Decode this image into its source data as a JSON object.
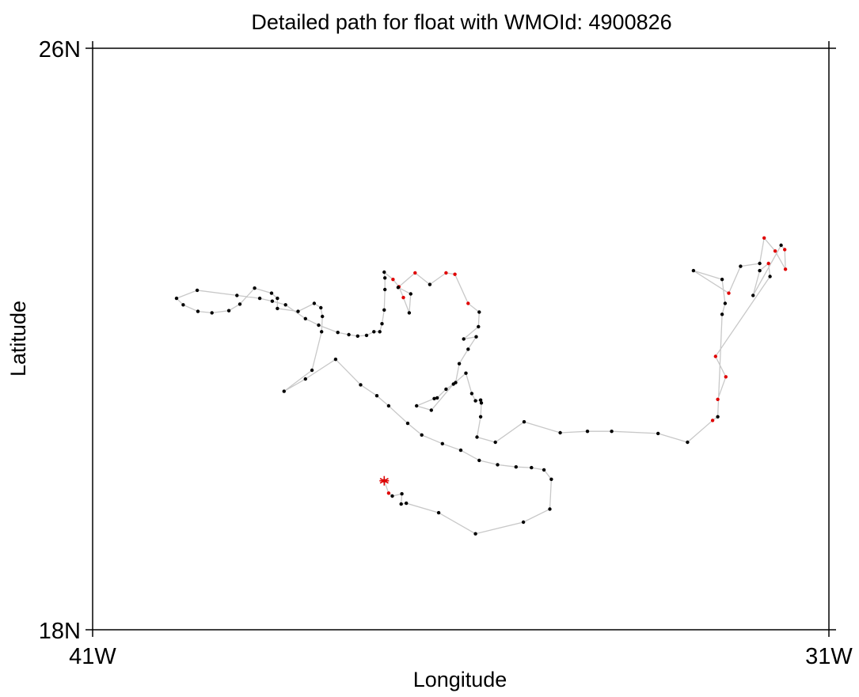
{
  "chart_data": {
    "type": "scatter",
    "title": "Detailed path for float with WMOId: 4900826",
    "xlabel": "Longitude",
    "ylabel": "Latitude",
    "x_tick_labels": [
      "41W",
      "31W"
    ],
    "y_tick_labels": [
      "18N",
      "26N"
    ],
    "xlim": [
      -41,
      -31
    ],
    "ylim": [
      18,
      26
    ],
    "grid": false,
    "colors": {
      "path": "#c8c8c8",
      "point": "#000000",
      "highlight": "#e00000",
      "axis": "#000000"
    },
    "start_marker": {
      "x": -37.04,
      "y": 20.05,
      "symbol": "asterisk"
    },
    "series": [
      {
        "x": [
          -37.04,
          -36.98,
          -36.93,
          -36.8,
          -36.81,
          -36.74,
          -36.3,
          -35.8,
          -35.15,
          -34.79,
          -34.77,
          -34.87,
          -35.04,
          -35.25,
          -35.5,
          -35.75,
          -36.0,
          -36.25,
          -36.53,
          -36.72,
          -36.98,
          -37.14,
          -37.36,
          -37.7,
          -38.11,
          -38.4,
          -38.02,
          -37.89,
          -37.88,
          -37.9,
          -37.99,
          -38.21,
          -38.49,
          -38.49,
          -38.57,
          -38.8,
          -39.0,
          -39.15,
          -39.38,
          -39.57,
          -39.77,
          -39.86,
          -39.58,
          -39.04,
          -38.73,
          -38.56,
          -38.38,
          -38.11,
          -37.93,
          -37.67,
          -37.52,
          -37.4,
          -37.28,
          -37.18,
          -37.1,
          -37.07,
          -37.04,
          -37.03,
          -37.03,
          -37.04,
          -36.92,
          -36.84,
          -36.78,
          -36.7,
          -36.68,
          -36.85,
          -36.62,
          -36.42,
          -36.2,
          -36.08,
          -35.9,
          -35.75,
          -35.76,
          -35.96,
          -35.79,
          -35.9,
          -36.02,
          -36.07,
          -36.2,
          -36.32,
          -36.36,
          -36.6,
          -36.4,
          -36.1,
          -35.93,
          -35.85,
          -35.8,
          -35.73,
          -35.72,
          -35.73,
          -35.78,
          -35.53,
          -35.14,
          -34.65,
          -34.28,
          -33.95,
          -33.32,
          -32.92,
          -32.58,
          -32.51,
          -32.45,
          -32.41,
          -32.45,
          -32.84,
          -32.36,
          -32.2,
          -31.94,
          -31.88,
          -31.73,
          -31.59,
          -31.6,
          -31.65,
          -32.03,
          -31.94,
          -31.82,
          -31.8,
          -32.54,
          -32.4,
          -32.51
        ],
        "y": [
          20.05,
          19.88,
          19.84,
          19.87,
          19.73,
          19.74,
          19.61,
          19.32,
          19.48,
          19.66,
          20.07,
          20.2,
          20.23,
          20.24,
          20.27,
          20.33,
          20.47,
          20.56,
          20.68,
          20.84,
          21.08,
          21.22,
          21.37,
          21.72,
          21.45,
          21.28,
          21.57,
          22.1,
          22.31,
          22.43,
          22.49,
          22.38,
          22.42,
          22.56,
          22.63,
          22.7,
          22.48,
          22.39,
          22.36,
          22.38,
          22.47,
          22.56,
          22.67,
          22.6,
          22.56,
          22.52,
          22.47,
          22.28,
          22.19,
          22.09,
          22.06,
          22.04,
          22.05,
          22.1,
          22.1,
          22.21,
          22.4,
          22.68,
          22.84,
          22.92,
          22.82,
          22.72,
          22.57,
          22.36,
          22.62,
          22.71,
          22.91,
          22.75,
          22.91,
          22.89,
          22.49,
          22.37,
          22.17,
          22.0,
          22.03,
          21.86,
          21.66,
          21.4,
          21.31,
          21.19,
          21.18,
          21.08,
          21.02,
          21.38,
          21.53,
          21.25,
          21.15,
          21.16,
          21.12,
          20.93,
          20.65,
          20.58,
          20.86,
          20.71,
          20.73,
          20.73,
          20.7,
          20.58,
          20.88,
          20.93,
          22.34,
          22.49,
          22.82,
          22.94,
          22.63,
          23.0,
          23.04,
          23.39,
          23.21,
          22.96,
          23.23,
          23.29,
          22.6,
          22.94,
          23.04,
          22.86,
          21.76,
          21.48,
          21.17
        ],
        "highlight": [
          false,
          true,
          false,
          false,
          false,
          false,
          false,
          false,
          false,
          false,
          false,
          false,
          false,
          false,
          false,
          false,
          false,
          false,
          false,
          false,
          false,
          false,
          false,
          false,
          false,
          false,
          false,
          false,
          false,
          false,
          false,
          false,
          false,
          false,
          false,
          false,
          false,
          false,
          false,
          false,
          false,
          false,
          false,
          false,
          false,
          false,
          false,
          false,
          false,
          false,
          false,
          false,
          false,
          false,
          false,
          false,
          false,
          false,
          false,
          false,
          true,
          true,
          true,
          false,
          false,
          false,
          true,
          false,
          true,
          true,
          true,
          false,
          false,
          false,
          false,
          false,
          false,
          false,
          false,
          false,
          false,
          false,
          false,
          false,
          false,
          false,
          false,
          false,
          false,
          false,
          false,
          false,
          false,
          false,
          false,
          false,
          false,
          false,
          true,
          false,
          false,
          false,
          false,
          false,
          true,
          false,
          false,
          true,
          true,
          true,
          true,
          false,
          false,
          false,
          true,
          false,
          true,
          true,
          true
        ]
      }
    ]
  }
}
